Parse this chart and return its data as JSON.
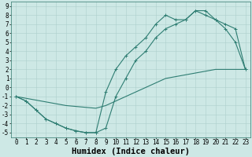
{
  "line1_x": [
    0,
    1,
    2,
    3,
    4,
    5,
    6,
    7,
    8,
    9,
    10,
    11,
    12,
    13,
    14,
    15,
    16,
    17,
    18,
    19,
    20,
    21,
    22,
    23
  ],
  "line1_y": [
    -1,
    -1.5,
    -2.5,
    -3.5,
    -4,
    -4.5,
    -4.8,
    -5,
    -5,
    -4.5,
    -1,
    1,
    3,
    4,
    5.5,
    6.5,
    7.0,
    7.5,
    8.5,
    8.0,
    7.5,
    6.5,
    5,
    2
  ],
  "line2_x": [
    0,
    1,
    2,
    3,
    4,
    5,
    6,
    7,
    8,
    9,
    10,
    11,
    12,
    13,
    14,
    15,
    16,
    17,
    18,
    19,
    20,
    21,
    22,
    23
  ],
  "line2_y": [
    -1,
    -1.5,
    -2.5,
    -3.5,
    -4,
    -4.5,
    -4.8,
    -5,
    -5,
    -0.5,
    2,
    3.5,
    4.5,
    5.5,
    7,
    8,
    7.5,
    7.5,
    8.5,
    8.5,
    7.5,
    7,
    6.5,
    2
  ],
  "line3_x": [
    0,
    1,
    2,
    3,
    4,
    5,
    6,
    7,
    8,
    9,
    10,
    11,
    12,
    13,
    14,
    15,
    16,
    17,
    18,
    19,
    20,
    21,
    22,
    23
  ],
  "line3_y": [
    -1,
    -1.2,
    -1.4,
    -1.6,
    -1.8,
    -2.0,
    -2.1,
    -2.2,
    -2.3,
    -2.0,
    -1.5,
    -1.0,
    -0.5,
    0,
    0.5,
    1.0,
    1.2,
    1.4,
    1.6,
    1.8,
    2.0,
    2.0,
    2.0,
    2.0
  ],
  "xlabel": "Humidex (Indice chaleur)",
  "xlim": [
    -0.5,
    23.5
  ],
  "ylim": [
    -5.5,
    9.5
  ],
  "xticks": [
    0,
    1,
    2,
    3,
    4,
    5,
    6,
    7,
    8,
    9,
    10,
    11,
    12,
    13,
    14,
    15,
    16,
    17,
    18,
    19,
    20,
    21,
    22,
    23
  ],
  "yticks": [
    -5,
    -4,
    -3,
    -2,
    -1,
    0,
    1,
    2,
    3,
    4,
    5,
    6,
    7,
    8,
    9
  ],
  "bg_color": "#cde8e5",
  "line_color": "#2e7d72",
  "grid_color": "#aecfcc",
  "xlabel_fontsize": 7.5,
  "tick_fontsize": 5.5,
  "marker": "+",
  "markersize": 3,
  "linewidth": 0.8
}
